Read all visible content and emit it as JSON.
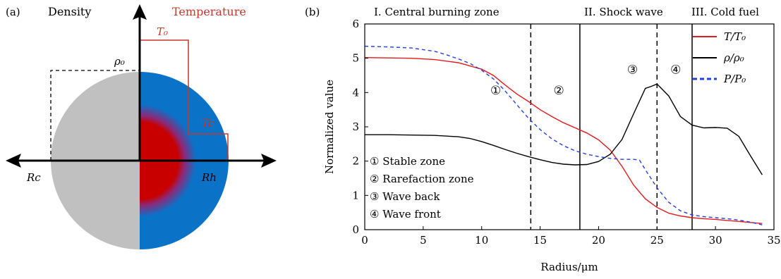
{
  "panel_a": {
    "label": "(a)",
    "left_title": "Density",
    "right_title": "Temperature",
    "rho0": "ρ₀",
    "T0": "T₀",
    "Tc": "Tc",
    "Rc": "Rc",
    "Rh": "Rh",
    "colors": {
      "grey": "#c0c0c0",
      "blue": "#0a73c8",
      "red": "#c80000",
      "title_red": "#c0392b"
    }
  },
  "panel_b": {
    "label": "(b)",
    "zone_titles": [
      "I. Central burning zone",
      "II. Shock wave",
      "III. Cold fuel"
    ],
    "markers": [
      {
        "symbol": "①",
        "x": 11.2,
        "y": 3.95
      },
      {
        "symbol": "②",
        "x": 16.6,
        "y": 3.95
      },
      {
        "symbol": "③",
        "x": 22.9,
        "y": 4.55
      },
      {
        "symbol": "④",
        "x": 26.6,
        "y": 4.55
      }
    ],
    "zone_legend": [
      "① Stable zone",
      "② Rarefaction zone",
      "③ Wave back",
      "④ Wave front"
    ]
  },
  "chart_data": {
    "type": "line",
    "xlabel": "Radius/μm",
    "ylabel": "Normalized value",
    "xlim": [
      0,
      35
    ],
    "ylim": [
      0,
      6
    ],
    "xticks": [
      0,
      5,
      10,
      15,
      20,
      25,
      30,
      35
    ],
    "yticks": [
      0,
      1,
      2,
      3,
      4,
      5,
      6
    ],
    "legend_position": "top-right",
    "vlines": [
      {
        "x": 14.2,
        "style": "dashed"
      },
      {
        "x": 18.4,
        "style": "solid"
      },
      {
        "x": 25.0,
        "style": "dashed"
      },
      {
        "x": 28.0,
        "style": "solid"
      }
    ],
    "series": [
      {
        "name": "T/T₀",
        "color": "#e31a1c",
        "style": "solid",
        "x": [
          0,
          2,
          4,
          6,
          8,
          10,
          11,
          12,
          13,
          14,
          15,
          16,
          17,
          18,
          19,
          20,
          21,
          22,
          23,
          24,
          25,
          26,
          27,
          28,
          29,
          30,
          31,
          32,
          33,
          34
        ],
        "y": [
          5.02,
          5.01,
          5.0,
          4.96,
          4.87,
          4.68,
          4.5,
          4.22,
          3.96,
          3.74,
          3.5,
          3.3,
          3.12,
          2.97,
          2.82,
          2.62,
          2.32,
          1.85,
          1.3,
          0.9,
          0.65,
          0.48,
          0.4,
          0.35,
          0.32,
          0.3,
          0.27,
          0.24,
          0.21,
          0.18
        ]
      },
      {
        "name": "ρ/ρ₀",
        "color": "#000000",
        "style": "solid",
        "x": [
          0,
          2,
          4,
          6,
          8,
          9,
          10,
          11,
          12,
          13,
          14,
          15,
          16,
          17,
          18,
          19,
          20,
          21,
          22,
          23,
          24,
          24.5,
          25,
          26,
          27,
          28,
          29,
          30,
          31,
          32,
          33,
          34
        ],
        "y": [
          2.77,
          2.77,
          2.76,
          2.75,
          2.71,
          2.66,
          2.57,
          2.46,
          2.34,
          2.23,
          2.13,
          2.04,
          1.96,
          1.91,
          1.89,
          1.9,
          1.99,
          2.2,
          2.63,
          3.38,
          4.12,
          4.18,
          4.25,
          3.9,
          3.3,
          3.05,
          2.97,
          2.98,
          2.96,
          2.72,
          2.15,
          1.6
        ]
      },
      {
        "name": "P/P₀",
        "color": "#1f3fe6",
        "style": "dashed",
        "x": [
          0,
          2,
          4,
          6,
          7,
          8,
          9,
          10,
          11,
          12,
          13,
          14,
          15,
          16,
          17,
          18,
          19,
          20,
          21,
          22,
          23,
          23.5,
          24,
          25,
          26,
          27,
          28,
          29,
          30,
          31,
          32,
          33,
          34
        ],
        "y": [
          5.35,
          5.33,
          5.3,
          5.2,
          5.1,
          4.98,
          4.85,
          4.65,
          4.4,
          4.05,
          3.65,
          3.25,
          2.92,
          2.65,
          2.45,
          2.3,
          2.2,
          2.13,
          2.08,
          2.05,
          2.05,
          2.03,
          1.75,
          1.22,
          0.8,
          0.55,
          0.43,
          0.38,
          0.35,
          0.32,
          0.28,
          0.22,
          0.14
        ]
      }
    ]
  }
}
